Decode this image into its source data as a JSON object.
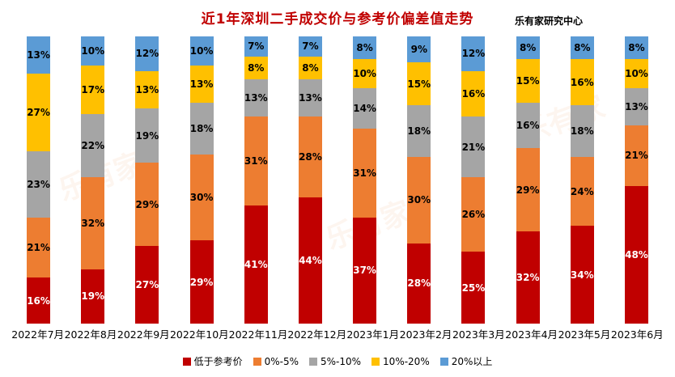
{
  "title": "近1年深圳二手成交价与参考价偏差值走势",
  "source": "乐有家研究中心",
  "watermark": "乐有家",
  "colors": {
    "title": "#c00000",
    "below_ref": "#c00000",
    "pct_0_5": "#ed7d31",
    "pct_5_10": "#a5a5a5",
    "pct_10_20": "#ffc000",
    "pct_20_plus": "#5b9bd5",
    "background": "#ffffff"
  },
  "chart_data": {
    "type": "bar",
    "stacked": true,
    "grid": false,
    "legend_position": "bottom",
    "ylim": [
      0,
      100
    ],
    "value_suffix": "%",
    "categories": [
      "2022年7月",
      "2022年8月",
      "2022年9月",
      "2022年10月",
      "2022年11月",
      "2022年12月",
      "2023年1月",
      "2023年2月",
      "2023年3月",
      "2023年4月",
      "2023年5月",
      "2023年6月"
    ],
    "series": [
      {
        "name": "低于参考价",
        "color": "#c00000",
        "label_color": "#ffffff",
        "values": [
          16,
          19,
          27,
          29,
          41,
          44,
          37,
          28,
          25,
          32,
          34,
          48
        ]
      },
      {
        "name": "0%-5%",
        "color": "#ed7d31",
        "label_color": "#000000",
        "values": [
          21,
          32,
          29,
          30,
          31,
          28,
          31,
          30,
          26,
          29,
          24,
          21
        ]
      },
      {
        "name": "5%-10%",
        "color": "#a5a5a5",
        "label_color": "#000000",
        "values": [
          23,
          22,
          19,
          18,
          13,
          13,
          14,
          18,
          21,
          16,
          18,
          13
        ]
      },
      {
        "name": "10%-20%",
        "color": "#ffc000",
        "label_color": "#000000",
        "values": [
          27,
          17,
          13,
          13,
          8,
          8,
          10,
          15,
          16,
          15,
          16,
          10
        ]
      },
      {
        "name": "20%以上",
        "color": "#5b9bd5",
        "label_color": "#000000",
        "values": [
          13,
          10,
          12,
          10,
          7,
          7,
          8,
          9,
          12,
          8,
          8,
          8
        ]
      }
    ]
  }
}
